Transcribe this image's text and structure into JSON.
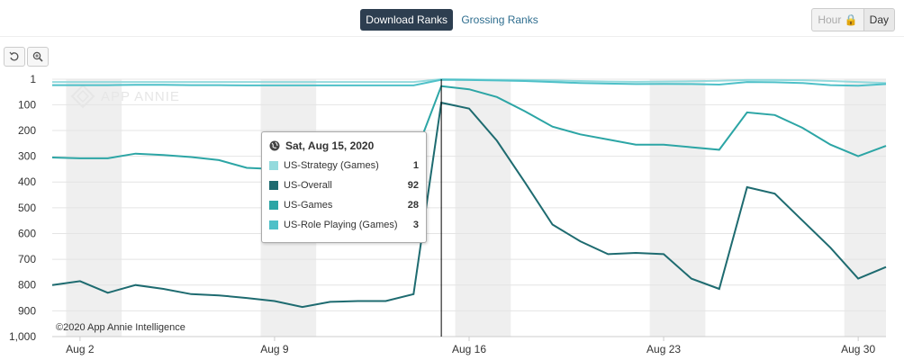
{
  "tabs": [
    {
      "label": "Download Ranks",
      "active": true
    },
    {
      "label": "Grossing Ranks",
      "active": false
    }
  ],
  "granularity": {
    "hour": "Hour",
    "day": "Day"
  },
  "toolbar": {
    "reset_icon": "reset-icon",
    "zoom_icon": "zoom-in-icon"
  },
  "watermark": "APP ANNIE",
  "copyright": "©2020 App Annie Intelligence",
  "tooltip": {
    "date": "Sat, Aug 15, 2020",
    "rows": [
      {
        "name": "US-Strategy (Games)",
        "value": "1",
        "color": "#94dadd"
      },
      {
        "name": "US-Overall",
        "value": "92",
        "color": "#1e6b70"
      },
      {
        "name": "US-Games",
        "value": "28",
        "color": "#2ca5a5"
      },
      {
        "name": "US-Role Playing (Games)",
        "value": "3",
        "color": "#4ec0c8"
      }
    ]
  },
  "chart_data": {
    "type": "line",
    "x": [
      "Aug 1",
      "Aug 2",
      "Aug 3",
      "Aug 4",
      "Aug 5",
      "Aug 6",
      "Aug 7",
      "Aug 8",
      "Aug 9",
      "Aug 10",
      "Aug 11",
      "Aug 12",
      "Aug 13",
      "Aug 14",
      "Aug 15",
      "Aug 16",
      "Aug 17",
      "Aug 18",
      "Aug 19",
      "Aug 20",
      "Aug 21",
      "Aug 22",
      "Aug 23",
      "Aug 24",
      "Aug 25",
      "Aug 26",
      "Aug 27",
      "Aug 28",
      "Aug 29",
      "Aug 30",
      "Aug 31"
    ],
    "x_tick_labels": [
      "Aug 2",
      "Aug 9",
      "Aug 16",
      "Aug 23",
      "Aug 30"
    ],
    "y_ticks": [
      1,
      100,
      200,
      300,
      400,
      500,
      600,
      700,
      800,
      900,
      1000
    ],
    "y_tick_labels": [
      "1",
      "100",
      "200",
      "300",
      "400",
      "500",
      "600",
      "700",
      "800",
      "900",
      "1,000"
    ],
    "ylim": [
      1,
      1000
    ],
    "y_reversed": true,
    "weekend_bands": [
      [
        "Aug 1",
        "Aug 2"
      ],
      [
        "Aug 8",
        "Aug 9"
      ],
      [
        "Aug 15",
        "Aug 16"
      ],
      [
        "Aug 22",
        "Aug 23"
      ],
      [
        "Aug 29",
        "Aug 30"
      ]
    ],
    "highlight_x": "Aug 15",
    "legend": "none",
    "series": [
      {
        "name": "US-Strategy (Games)",
        "color": "#94dadd",
        "values": [
          12,
          12,
          12,
          12,
          12,
          12,
          12,
          12,
          12,
          12,
          12,
          12,
          12,
          12,
          1,
          2,
          3,
          4,
          6,
          8,
          10,
          11,
          10,
          9,
          7,
          4,
          4,
          5,
          8,
          12,
          16
        ]
      },
      {
        "name": "US-Role Playing (Games)",
        "color": "#4ec0c8",
        "values": [
          24,
          24,
          24,
          23,
          23,
          24,
          24,
          25,
          25,
          25,
          25,
          25,
          25,
          25,
          3,
          4,
          6,
          8,
          12,
          16,
          18,
          20,
          19,
          20,
          22,
          12,
          13,
          16,
          24,
          26,
          20
        ]
      },
      {
        "name": "US-Games",
        "color": "#2ca5a5",
        "values": [
          305,
          308,
          308,
          290,
          295,
          303,
          315,
          345,
          350,
          345,
          335,
          325,
          318,
          310,
          28,
          40,
          70,
          125,
          185,
          215,
          235,
          255,
          255,
          265,
          275,
          130,
          140,
          190,
          255,
          300,
          260
        ]
      },
      {
        "name": "US-Overall",
        "color": "#1e6b70",
        "values": [
          800,
          785,
          830,
          800,
          815,
          835,
          840,
          850,
          862,
          885,
          865,
          862,
          862,
          835,
          92,
          115,
          240,
          400,
          565,
          630,
          680,
          675,
          680,
          775,
          815,
          420,
          445,
          550,
          655,
          775,
          730
        ]
      }
    ]
  }
}
